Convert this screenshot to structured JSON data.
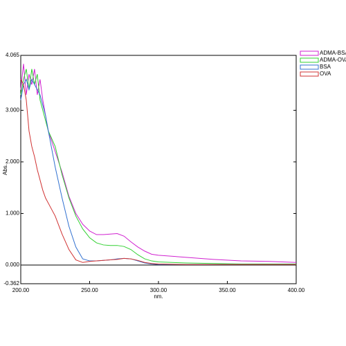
{
  "chart_data": {
    "type": "line",
    "x_label": "nm.",
    "y_label": "Abs.",
    "x": [
      200,
      202,
      204,
      206,
      208,
      210,
      212,
      214,
      216,
      218,
      220,
      225,
      230,
      235,
      240,
      245,
      250,
      255,
      260,
      265,
      270,
      275,
      280,
      285,
      290,
      295,
      300,
      320,
      340,
      360,
      380,
      400
    ],
    "series": [
      {
        "name": "ADMA-BSA",
        "color": "#d020d0",
        "values": [
          3.4,
          3.9,
          3.3,
          3.7,
          3.5,
          3.8,
          3.3,
          3.6,
          3.2,
          2.9,
          2.6,
          2.2,
          1.8,
          1.33,
          1.0,
          0.79,
          0.66,
          0.59,
          0.59,
          0.6,
          0.61,
          0.56,
          0.45,
          0.35,
          0.27,
          0.21,
          0.19,
          0.15,
          0.11,
          0.08,
          0.07,
          0.05
        ]
      },
      {
        "name": "ADMA-OVA",
        "color": "#30d030",
        "values": [
          3.3,
          3.6,
          3.8,
          3.4,
          3.8,
          3.5,
          3.7,
          3.2,
          3.0,
          2.8,
          2.6,
          2.3,
          1.75,
          1.3,
          0.95,
          0.7,
          0.53,
          0.43,
          0.39,
          0.38,
          0.38,
          0.36,
          0.3,
          0.2,
          0.12,
          0.08,
          0.06,
          0.04,
          0.03,
          0.02,
          0.02,
          0.02
        ]
      },
      {
        "name": "BSA",
        "color": "#3070d0",
        "values": [
          3.2,
          3.5,
          3.6,
          3.4,
          3.6,
          3.5,
          3.4,
          3.3,
          3.1,
          2.9,
          2.6,
          1.9,
          1.3,
          0.75,
          0.35,
          0.12,
          0.08,
          0.08,
          0.09,
          0.1,
          0.12,
          0.13,
          0.12,
          0.08,
          0.04,
          0.02,
          0.01,
          0.01,
          0.01,
          0.01,
          0.01,
          0.01
        ]
      },
      {
        "name": "OVA",
        "color": "#d03030",
        "values": [
          3.6,
          3.5,
          3.2,
          2.6,
          2.3,
          2.1,
          1.85,
          1.65,
          1.45,
          1.3,
          1.2,
          0.95,
          0.6,
          0.3,
          0.1,
          0.05,
          0.07,
          0.08,
          0.09,
          0.1,
          0.11,
          0.13,
          0.12,
          0.09,
          0.05,
          0.03,
          0.02,
          0.01,
          0.01,
          0.01,
          0.01,
          0.01
        ]
      }
    ],
    "xlim": [
      200,
      400
    ],
    "xticks": [
      {
        "value": 200,
        "label": "200.00"
      },
      {
        "value": 250,
        "label": "250.00"
      },
      {
        "value": 300,
        "label": "300.00"
      },
      {
        "value": 350,
        "label": "350.00"
      },
      {
        "value": 400,
        "label": "400.00"
      }
    ],
    "ylim": [
      -0.362,
      4.065
    ],
    "yticks": [
      {
        "value": -0.362,
        "label": "-0.362"
      },
      {
        "value": 0,
        "label": "0.000"
      },
      {
        "value": 1,
        "label": "1.000"
      },
      {
        "value": 2,
        "label": "2.000"
      },
      {
        "value": 3,
        "label": "3.000"
      },
      {
        "value": 4.065,
        "label": "4.065"
      }
    ],
    "zero_line": true,
    "legend": "top-right-outside"
  }
}
